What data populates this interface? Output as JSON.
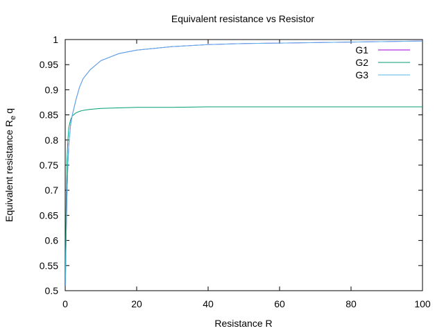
{
  "chart_data": {
    "type": "line",
    "title": "Equivalent resistance vs Resistor",
    "xlabel": "Resistance R",
    "ylabel": "Equivalent resistance R",
    "ylabel_sub": "e",
    "ylabel_tail": "q",
    "xlim": [
      0,
      100
    ],
    "ylim": [
      0.5,
      1.0
    ],
    "xticks": [
      "0",
      "20",
      "40",
      "60",
      "80",
      "100"
    ],
    "yticks": [
      "0.5",
      "0.55",
      "0.6",
      "0.65",
      "0.7",
      "0.75",
      "0.8",
      "0.85",
      "0.9",
      "0.95",
      "1"
    ],
    "grid": false,
    "legend_position": "top-right",
    "series": [
      {
        "name": "G1",
        "color": "#9400d3",
        "x": [
          0.05,
          0.1,
          0.2,
          0.3,
          0.5,
          0.75,
          1,
          1.5,
          2,
          3,
          4,
          5,
          7,
          10,
          15,
          20,
          30,
          40,
          50,
          60,
          70,
          80,
          90,
          100
        ],
        "y": [
          0.51,
          0.53,
          0.58,
          0.62,
          0.69,
          0.75,
          0.79,
          0.83,
          0.85,
          0.88,
          0.905,
          0.922,
          0.94,
          0.958,
          0.972,
          0.979,
          0.986,
          0.99,
          0.992,
          0.993,
          0.994,
          0.995,
          0.996,
          0.997
        ]
      },
      {
        "name": "G2",
        "color": "#009e73",
        "x": [
          0.05,
          0.1,
          0.2,
          0.3,
          0.5,
          0.75,
          1,
          1.5,
          2,
          3,
          4,
          5,
          7,
          10,
          15,
          20,
          30,
          40,
          50,
          60,
          70,
          80,
          90,
          100
        ],
        "y": [
          0.52,
          0.56,
          0.63,
          0.69,
          0.76,
          0.8,
          0.825,
          0.84,
          0.848,
          0.854,
          0.857,
          0.859,
          0.861,
          0.863,
          0.864,
          0.865,
          0.865,
          0.866,
          0.866,
          0.866,
          0.866,
          0.866,
          0.866,
          0.866
        ]
      },
      {
        "name": "G3",
        "color": "#56b4e9",
        "x": [
          0.05,
          0.1,
          0.2,
          0.3,
          0.5,
          0.75,
          1,
          1.5,
          2,
          3,
          4,
          5,
          7,
          10,
          15,
          20,
          30,
          40,
          50,
          60,
          70,
          80,
          90,
          100
        ],
        "y": [
          0.51,
          0.53,
          0.58,
          0.62,
          0.69,
          0.75,
          0.79,
          0.83,
          0.85,
          0.88,
          0.905,
          0.922,
          0.94,
          0.958,
          0.972,
          0.979,
          0.986,
          0.99,
          0.992,
          0.993,
          0.994,
          0.995,
          0.996,
          0.997
        ]
      }
    ]
  }
}
